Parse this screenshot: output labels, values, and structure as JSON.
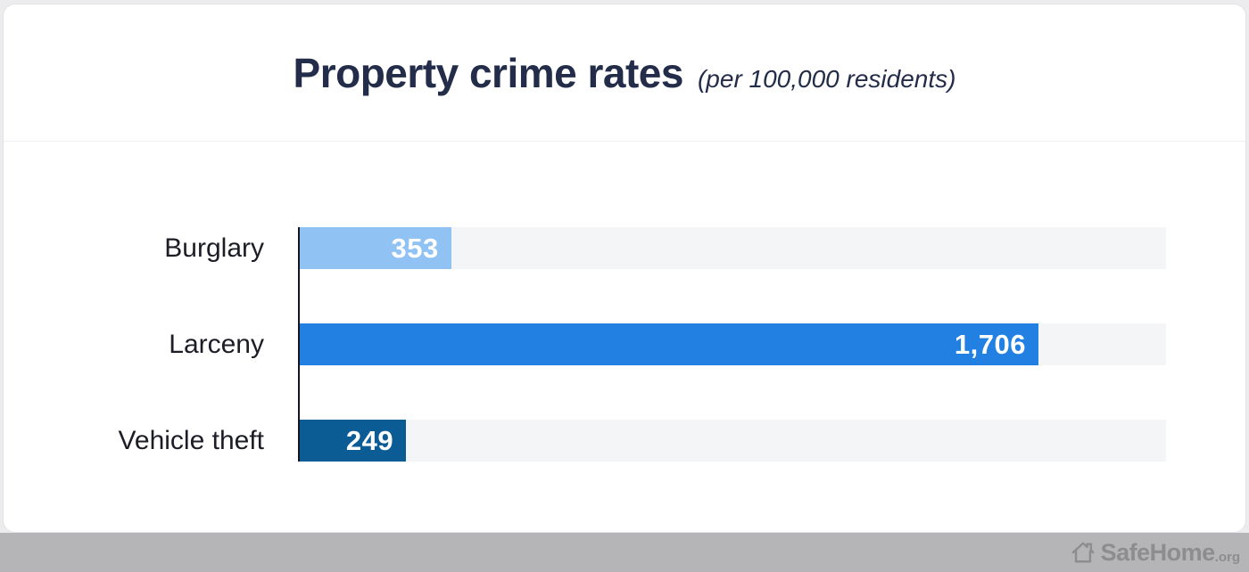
{
  "header": {
    "title": "Property crime rates",
    "subtitle": "(per 100,000 residents)"
  },
  "chart_data": {
    "type": "bar",
    "orientation": "horizontal",
    "title": "Property crime rates",
    "subtitle_note": "(per 100,000 residents)",
    "categories": [
      "Burglary",
      "Larceny",
      "Vehicle theft"
    ],
    "values": [
      353,
      1706,
      249
    ],
    "value_labels": [
      "353",
      "1,706",
      "249"
    ],
    "axis_range": [
      0,
      2000
    ],
    "axis_max": 2000,
    "bar_colors": [
      "#90c2f4",
      "#2280e2",
      "#0b5c95"
    ],
    "track_color": "#f4f5f7",
    "axis_line_color": "#15161f",
    "value_label_color": "#ffffff",
    "gridlines": false,
    "legend": false
  },
  "footer": {
    "brand": "SafeHome",
    "brand_suffix": ".org",
    "band_color": "#b5b5b7",
    "logo_color": "#8d8d90"
  },
  "colors": {
    "page_background": "#ececee",
    "card_background": "#ffffff",
    "title_color": "#232d49",
    "divider": "#edeff2",
    "category_label": "#1c1d26"
  }
}
